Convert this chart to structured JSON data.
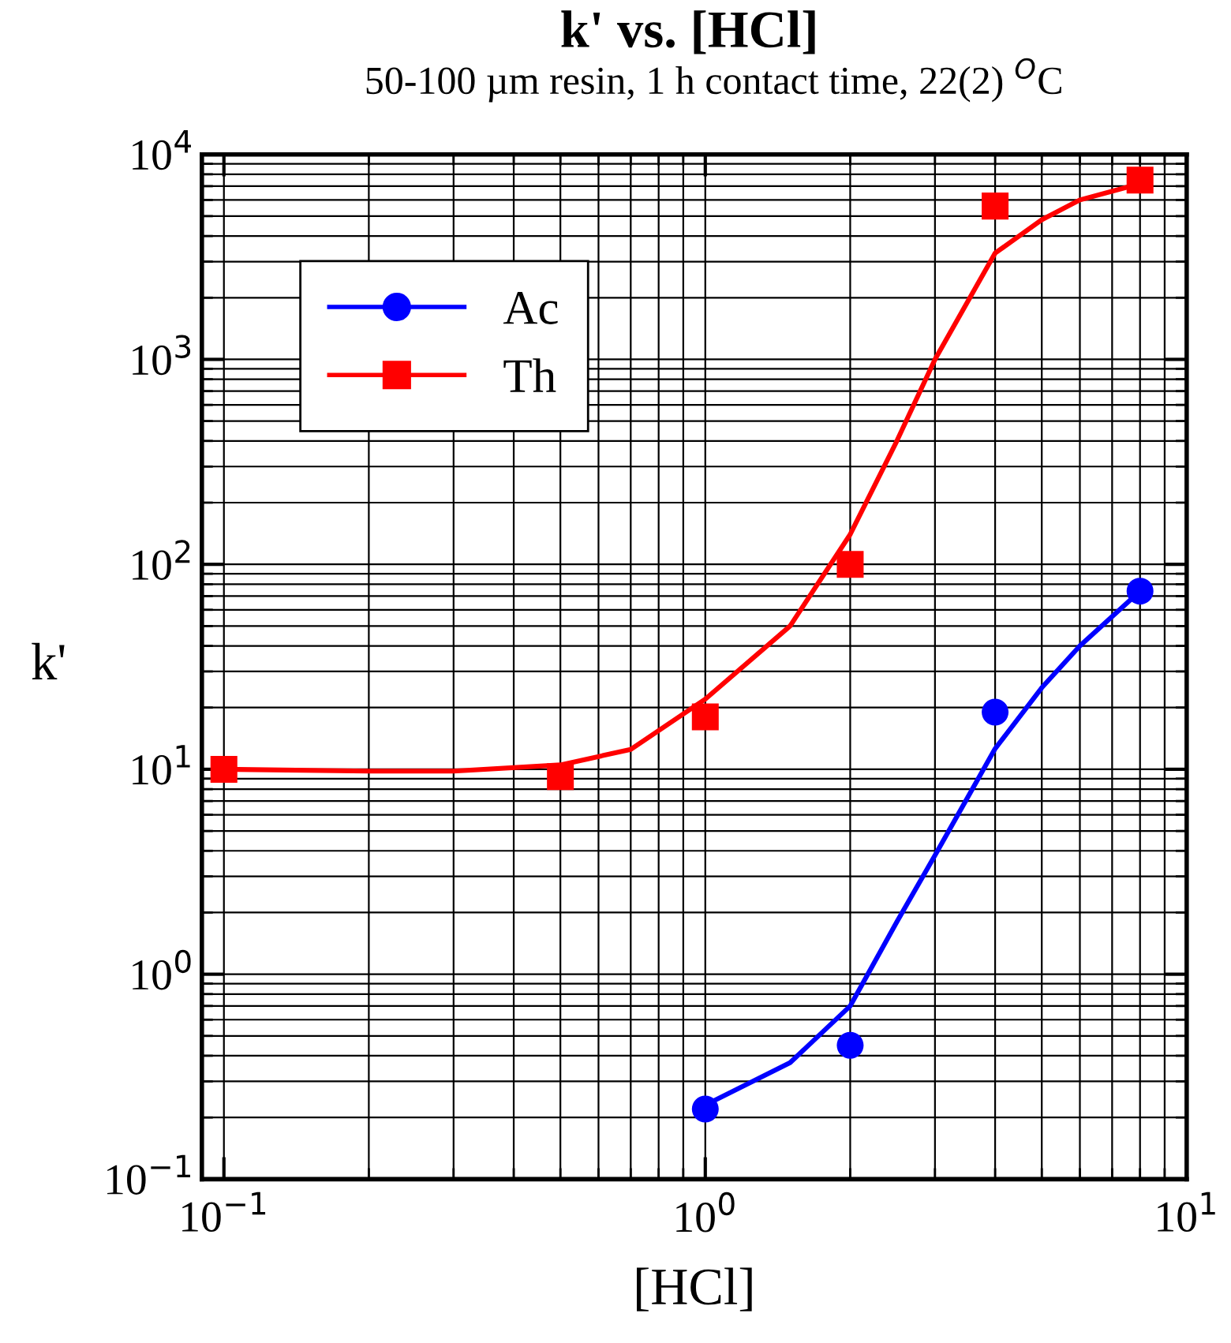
{
  "chart_data": {
    "type": "scatter",
    "title": "k' vs. [HCl]",
    "subtitle": "50-100 µm resin, 1 h contact time, 22(2) $^{O}$C",
    "xlabel": "[HCl]",
    "ylabel": "k'",
    "log": "xy",
    "grid": true,
    "legend": "top left",
    "xlim": [
      0.09,
      10
    ],
    "xticks": [
      {
        "value": 0.1,
        "label": "10$^{−1}$"
      },
      {
        "value": 1,
        "label": "10$^{0}$"
      },
      {
        "value": 10,
        "label": "10$^{1}$"
      }
    ],
    "ylim": [
      0.1,
      10000
    ],
    "yticks": [
      {
        "value": 0.1,
        "label": "10$^{−1}$"
      },
      {
        "value": 1,
        "label": "10$^{0}$"
      },
      {
        "value": 10,
        "label": "10$^{1}$"
      },
      {
        "value": 100,
        "label": "10$^{2}$"
      },
      {
        "value": 1000,
        "label": "10$^{3}$"
      },
      {
        "value": 10000,
        "label": "10$^{4}$"
      }
    ],
    "series": [
      {
        "name": "Ac",
        "color": "#0000ff",
        "marker": "circle",
        "x": [
          1,
          2,
          4,
          8
        ],
        "values": [
          0.22,
          0.45,
          19,
          74
        ]
      },
      {
        "name": "Th",
        "color": "#ff0000",
        "marker": "square",
        "x": [
          0.1,
          0.5,
          1,
          2,
          4,
          8
        ],
        "values": [
          10,
          9.2,
          18,
          100,
          5600,
          7500
        ]
      },
      {
        "type": "line",
        "color": "#0000ff",
        "marker": "none",
        "x": [
          1,
          1.5,
          2,
          2.5,
          3,
          4,
          5,
          6,
          8
        ],
        "values": [
          0.23,
          0.37,
          0.7,
          1.8,
          3.8,
          12.6,
          25,
          40,
          74
        ]
      },
      {
        "type": "line",
        "color": "#ff0000",
        "marker": "none",
        "x": [
          0.1,
          0.2,
          0.3,
          0.5,
          0.7,
          1,
          1.5,
          2,
          2.5,
          3,
          4,
          5,
          6,
          8
        ],
        "values": [
          10,
          9.8,
          9.8,
          10.5,
          12.5,
          22,
          50,
          140,
          400,
          1000,
          3300,
          4800,
          6000,
          7200
        ]
      }
    ]
  }
}
